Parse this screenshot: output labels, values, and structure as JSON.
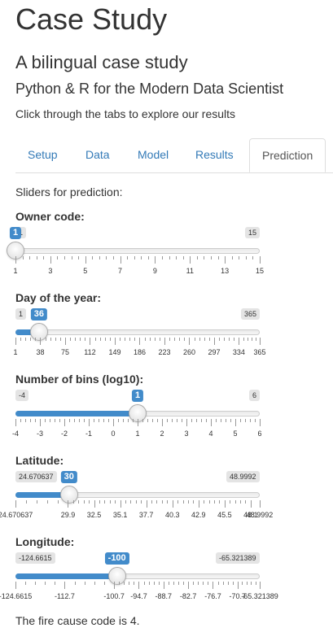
{
  "header": {
    "title": "Case Study",
    "subtitle": "A bilingual case study",
    "subtitle2": "Python & R for the Modern Data Scientist",
    "intro": "Click through the tabs to explore our results"
  },
  "tabs": [
    {
      "label": "Setup",
      "active": false
    },
    {
      "label": "Data",
      "active": false
    },
    {
      "label": "Model",
      "active": false
    },
    {
      "label": "Results",
      "active": false
    },
    {
      "label": "Prediction",
      "active": true
    }
  ],
  "prediction": {
    "heading": "Sliders for prediction:",
    "sliders": [
      {
        "label": "Owner code:",
        "min": 1,
        "max": 15,
        "value": 1,
        "min_label": "1",
        "max_label": "15",
        "value_label": "1",
        "ticks": [
          1,
          3,
          5,
          7,
          9,
          11,
          13,
          15
        ],
        "tick_labels": [
          "1",
          "3",
          "5",
          "7",
          "9",
          "11",
          "13",
          "15"
        ]
      },
      {
        "label": "Day of the year:",
        "min": 1,
        "max": 365,
        "value": 36,
        "min_label": "1",
        "max_label": "365",
        "value_label": "36",
        "ticks": [
          1,
          38,
          75,
          112,
          149,
          186,
          223,
          260,
          297,
          334,
          365
        ],
        "tick_labels": [
          "1",
          "38",
          "75",
          "112",
          "149",
          "186",
          "223",
          "260",
          "297",
          "334",
          "365"
        ]
      },
      {
        "label": "Number of bins (log10):",
        "min": -4,
        "max": 6,
        "value": 1,
        "min_label": "-4",
        "max_label": "6",
        "value_label": "1",
        "ticks": [
          -4,
          -3,
          -2,
          -1,
          0,
          1,
          2,
          3,
          4,
          5,
          6
        ],
        "tick_labels": [
          "-4",
          "-3",
          "-2",
          "-1",
          "0",
          "1",
          "2",
          "3",
          "4",
          "5",
          "6"
        ]
      },
      {
        "label": "Latitude:",
        "min": 24.670637,
        "max": 48.9992,
        "value": 30,
        "min_label": "24.670637",
        "max_label": "48.9992",
        "value_label": "30",
        "ticks": [
          24.670637,
          29.9,
          32.5,
          35.1,
          37.7,
          40.3,
          42.9,
          45.5,
          48.1,
          48.9992
        ],
        "tick_labels": [
          "24.670637",
          "29.9",
          "32.5",
          "35.1",
          "37.7",
          "40.3",
          "42.9",
          "45.5",
          "48.1",
          "48.9992"
        ]
      },
      {
        "label": "Longitude:",
        "min": -124.6615,
        "max": -65.321389,
        "value": -100,
        "min_label": "-124.6615",
        "max_label": "-65.321389",
        "value_label": "-100",
        "ticks": [
          -124.6615,
          -112.7,
          -100.7,
          -94.7,
          -88.7,
          -82.7,
          -76.7,
          -70.7,
          -65.321389
        ],
        "tick_labels": [
          "-124.6615",
          "-112.7",
          "-100.7",
          "-94.7",
          "-88.7",
          "-82.7",
          "-76.7",
          "-70.7",
          "-65.321389"
        ]
      }
    ],
    "result": "The fire cause code is 4."
  },
  "colors": {
    "accent": "#428bca",
    "link": "#337ab7",
    "text": "#333333",
    "edge_badge": "#e4e4e4"
  }
}
